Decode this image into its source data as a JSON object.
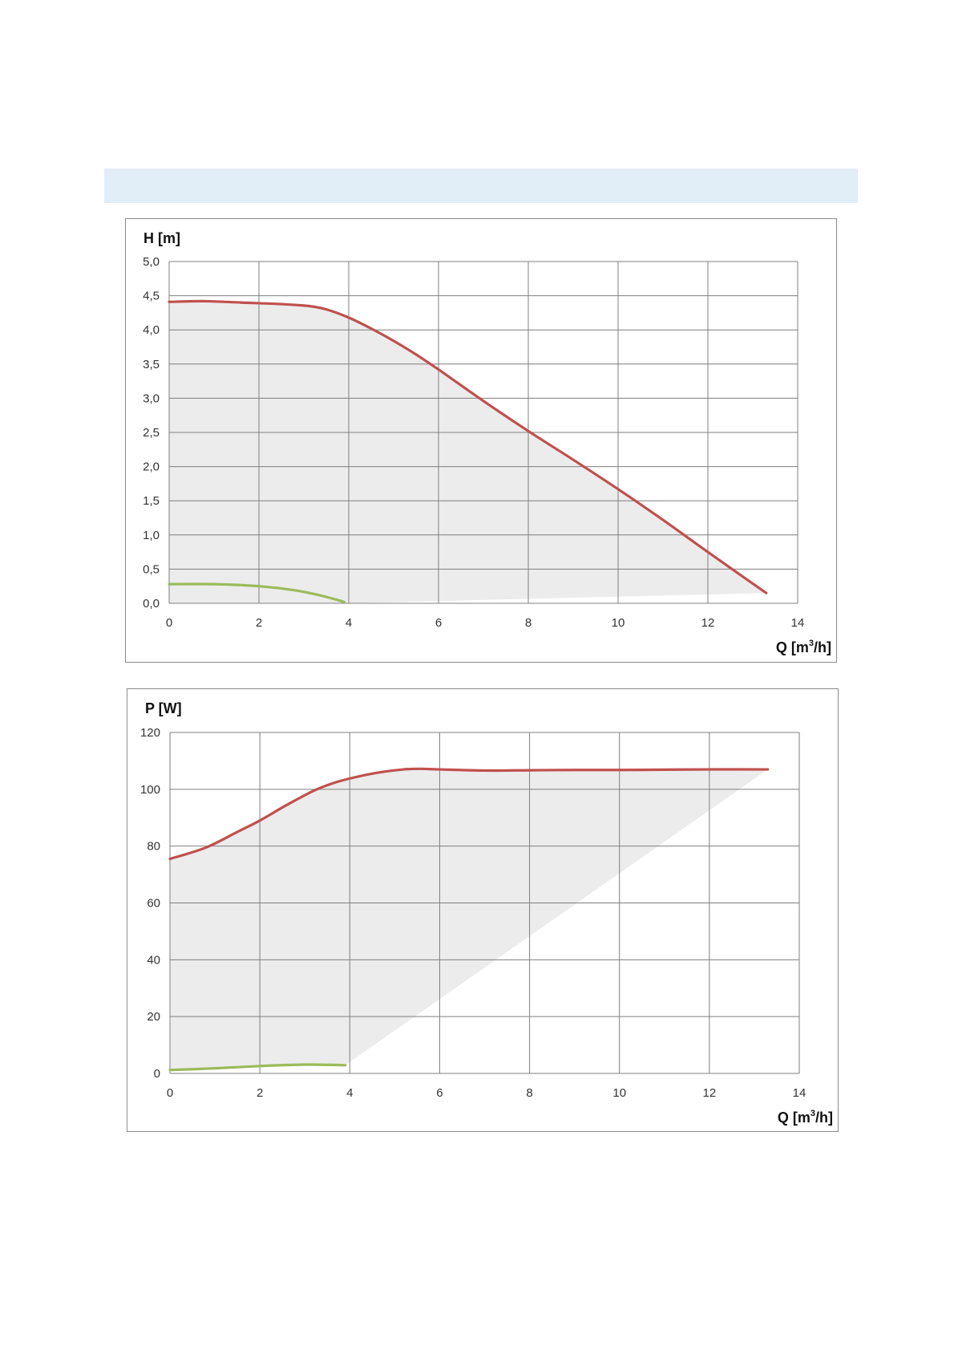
{
  "colors": {
    "header_band": "#e1edf7",
    "grid": "#7f7f7f",
    "envelope_fill": "#ececec",
    "max_curve": "#c0504d",
    "min_curve": "#9bbb59"
  },
  "chart_data": [
    {
      "id": "head",
      "type": "line",
      "ylabel": "H [m]",
      "xlabel": {
        "prefix": "Q [m",
        "sup": "3",
        "suffix": "/h]"
      },
      "xlim": [
        0,
        14
      ],
      "ylim": [
        0,
        5
      ],
      "x_ticks": [
        "0",
        "2",
        "4",
        "6",
        "8",
        "10",
        "12",
        "14"
      ],
      "y_ticks": [
        "0,0",
        "0,5",
        "1,0",
        "1,5",
        "2,0",
        "2,5",
        "3,0",
        "3,5",
        "4,0",
        "4,5",
        "5,0"
      ],
      "grid": true,
      "legend": "none",
      "series": [
        {
          "role": "max",
          "color": "#c0504d",
          "points": [
            [
              0,
              4.41
            ],
            [
              0.8,
              4.42
            ],
            [
              1.6,
              4.4
            ],
            [
              2.4,
              4.38
            ],
            [
              3.1,
              4.35
            ],
            [
              3.5,
              4.3
            ],
            [
              4.0,
              4.18
            ],
            [
              4.5,
              4.02
            ],
            [
              5.0,
              3.84
            ],
            [
              5.5,
              3.64
            ],
            [
              6.0,
              3.42
            ],
            [
              7.0,
              2.96
            ],
            [
              8.0,
              2.52
            ],
            [
              9.0,
              2.1
            ],
            [
              10.0,
              1.67
            ],
            [
              11.0,
              1.22
            ],
            [
              12.0,
              0.75
            ],
            [
              13.3,
              0.15
            ]
          ]
        },
        {
          "role": "min",
          "color": "#9bbb59",
          "points": [
            [
              0,
              0.28
            ],
            [
              1.0,
              0.28
            ],
            [
              2.0,
              0.25
            ],
            [
              2.8,
              0.19
            ],
            [
              3.4,
              0.11
            ],
            [
              3.9,
              0.02
            ]
          ]
        }
      ],
      "envelope": [
        [
          0,
          4.41
        ],
        [
          0.8,
          4.42
        ],
        [
          1.6,
          4.4
        ],
        [
          2.4,
          4.38
        ],
        [
          3.1,
          4.35
        ],
        [
          3.5,
          4.3
        ],
        [
          4.0,
          4.18
        ],
        [
          4.5,
          4.02
        ],
        [
          5.0,
          3.84
        ],
        [
          5.5,
          3.64
        ],
        [
          6.0,
          3.42
        ],
        [
          7.0,
          2.96
        ],
        [
          8.0,
          2.52
        ],
        [
          9.0,
          2.1
        ],
        [
          10.0,
          1.67
        ],
        [
          11.0,
          1.22
        ],
        [
          12.0,
          0.75
        ],
        [
          13.3,
          0.15
        ],
        [
          3.9,
          0.0
        ],
        [
          0,
          0.0
        ]
      ]
    },
    {
      "id": "power",
      "type": "line",
      "ylabel": "P [W]",
      "xlabel": {
        "prefix": "Q [m",
        "sup": "3",
        "suffix": "/h]"
      },
      "xlim": [
        0,
        14
      ],
      "ylim": [
        0,
        120
      ],
      "x_ticks": [
        "0",
        "2",
        "4",
        "6",
        "8",
        "10",
        "12",
        "14"
      ],
      "y_ticks": [
        "0",
        "20",
        "40",
        "60",
        "80",
        "100",
        "120"
      ],
      "grid": true,
      "legend": "none",
      "series": [
        {
          "role": "max",
          "color": "#c0504d",
          "points": [
            [
              0,
              75.5
            ],
            [
              0.8,
              79.5
            ],
            [
              1.5,
              85.0
            ],
            [
              2.0,
              89.0
            ],
            [
              2.6,
              94.5
            ],
            [
              3.2,
              99.5
            ],
            [
              3.6,
              102.0
            ],
            [
              4.0,
              103.8
            ],
            [
              4.6,
              105.8
            ],
            [
              5.2,
              107.0
            ],
            [
              5.6,
              107.2
            ],
            [
              6.0,
              107.0
            ],
            [
              7.0,
              106.6
            ],
            [
              8.0,
              106.7
            ],
            [
              9.0,
              106.8
            ],
            [
              10.0,
              106.8
            ],
            [
              11.0,
              106.9
            ],
            [
              12.0,
              107.0
            ],
            [
              13.3,
              107.0
            ]
          ]
        },
        {
          "role": "min",
          "color": "#9bbb59",
          "points": [
            [
              0,
              1.2
            ],
            [
              1.0,
              1.8
            ],
            [
              2.0,
              2.6
            ],
            [
              3.0,
              3.1
            ],
            [
              3.9,
              2.9
            ]
          ]
        }
      ],
      "envelope": [
        [
          0,
          75.5
        ],
        [
          0.8,
          79.5
        ],
        [
          1.5,
          85.0
        ],
        [
          2.0,
          89.0
        ],
        [
          2.6,
          94.5
        ],
        [
          3.2,
          99.5
        ],
        [
          3.6,
          102.0
        ],
        [
          4.0,
          103.8
        ],
        [
          4.6,
          105.8
        ],
        [
          5.2,
          107.0
        ],
        [
          5.6,
          107.2
        ],
        [
          6.0,
          107.0
        ],
        [
          7.0,
          106.6
        ],
        [
          8.0,
          106.7
        ],
        [
          9.0,
          106.8
        ],
        [
          10.0,
          106.8
        ],
        [
          11.0,
          106.9
        ],
        [
          12.0,
          107.0
        ],
        [
          13.3,
          107.0
        ],
        [
          3.9,
          2.9
        ],
        [
          3.0,
          3.1
        ],
        [
          2.0,
          2.6
        ],
        [
          1.0,
          1.8
        ],
        [
          0,
          1.2
        ]
      ]
    }
  ]
}
